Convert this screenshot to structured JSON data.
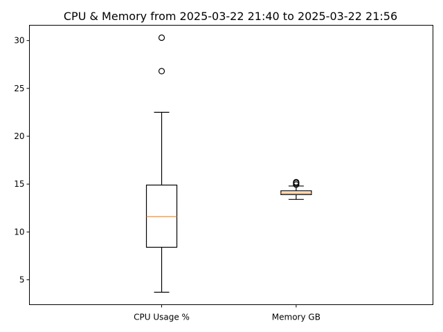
{
  "chart_data": {
    "type": "box",
    "title": "CPU & Memory from 2025-03-22 21:40 to 2025-03-22 21:56",
    "xlabel": "",
    "ylabel": "",
    "categories": [
      "CPU Usage %",
      "Memory GB"
    ],
    "ylim": [
      2.4,
      31.6
    ],
    "yticks": [
      5,
      10,
      15,
      20,
      25,
      30
    ],
    "grid": false,
    "boxes": [
      {
        "label": "CPU Usage %",
        "whisker_low": 3.7,
        "q1": 8.4,
        "median": 11.6,
        "q3": 14.9,
        "whisker_high": 22.5,
        "outliers": [
          26.8,
          30.3
        ]
      },
      {
        "label": "Memory GB",
        "whisker_low": 13.4,
        "q1": 13.9,
        "median": 14.05,
        "q3": 14.3,
        "whisker_high": 14.8,
        "outliers": [
          14.95,
          15.1,
          15.2
        ]
      }
    ],
    "colors": {
      "box_edge": "#000000",
      "median": "#ff7f0e",
      "background": "#ffffff"
    }
  }
}
